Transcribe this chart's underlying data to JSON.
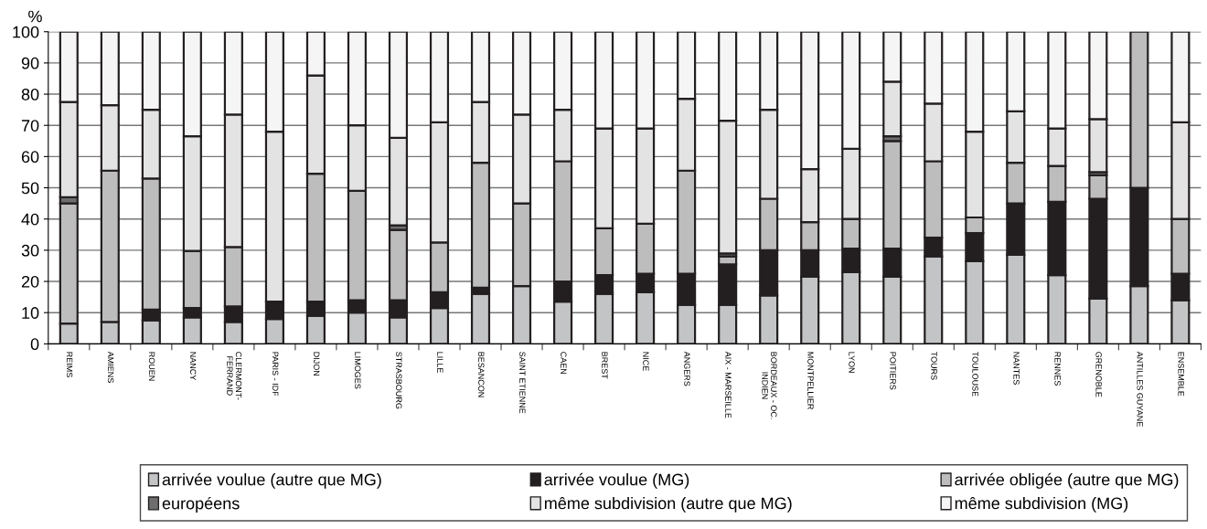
{
  "chart_data": {
    "type": "bar",
    "stacked": true,
    "ylabel": "%",
    "categories": [
      "REIMS",
      "AMIENS",
      "ROUEN",
      "NANCY",
      "CLERMONT-\nFERRAND",
      "PARIS - IDF",
      "DIJON",
      "LIMOGES",
      "STRASBOURG",
      "LILLE",
      "BESANCON",
      "SAINT ETIENNE",
      "CAEN",
      "BREST",
      "NICE",
      "ANGERS",
      "AIX - MARSEILLE",
      "BORDEAUX - OC.\nINDIEN",
      "MONTPELLIER",
      "LYON",
      "POITIERS",
      "TOURS",
      "TOULOUSE",
      "NANTES",
      "RENNES",
      "GRENOBLE",
      "ANTILLES GUYANE",
      "ENSEMBLE"
    ],
    "series": [
      {
        "name": "arrivée voulue (autre que MG)",
        "color": "#c3c4c6",
        "values": [
          6.5,
          7,
          7.5,
          8.5,
          7,
          8,
          9,
          10,
          8.5,
          11.5,
          16,
          18.5,
          13.5,
          16,
          16.5,
          12.5,
          12.5,
          15.5,
          21.5,
          23,
          21.5,
          28,
          26.5,
          28.5,
          22,
          14.5,
          18.5,
          14
        ]
      },
      {
        "name": "arrivée voulue (MG)",
        "color": "#231f20",
        "values": [
          0,
          0,
          3.5,
          3,
          5,
          5.5,
          4.5,
          4,
          5.5,
          5,
          2,
          0,
          6.5,
          6,
          6,
          10,
          13,
          14.5,
          8.5,
          7.5,
          9,
          6,
          9,
          16.5,
          23.5,
          32,
          31.5,
          8.5
        ]
      },
      {
        "name": "arrivée obligée (autre que MG)",
        "color": "#bdbdbd",
        "values": [
          38.5,
          48.5,
          42,
          18.3,
          19,
          0,
          41,
          35,
          22.5,
          16,
          40,
          26.5,
          38.5,
          15,
          16,
          33,
          2.5,
          16.5,
          9,
          9.5,
          34.5,
          24.5,
          5,
          13,
          11.5,
          7.5,
          50,
          17.5
        ]
      },
      {
        "name": "européens",
        "color": "#6e6e6e",
        "values": [
          2,
          0,
          0,
          0,
          0,
          0,
          0,
          0,
          1.5,
          0,
          0,
          0,
          0,
          0,
          0,
          0,
          1,
          0,
          0,
          0,
          1.5,
          0,
          0,
          0,
          0,
          1,
          0,
          0
        ]
      },
      {
        "name": "même subdivision (autre que MG)",
        "color": "#e3e3e3",
        "values": [
          30.5,
          21,
          22,
          36.7,
          42.5,
          54.5,
          31.5,
          21,
          28,
          38.5,
          19.5,
          28.5,
          16.5,
          32,
          30.5,
          23,
          42.5,
          28.5,
          17,
          22.5,
          17.5,
          18.5,
          27.5,
          16.5,
          12,
          17,
          0,
          31
        ]
      },
      {
        "name": "même subdivision (MG)",
        "color": "#f5f5f5",
        "values": [
          22.5,
          23.5,
          25,
          33.5,
          26.5,
          32,
          14,
          30,
          34,
          29,
          22.5,
          26.5,
          25,
          31,
          31,
          21.5,
          28.5,
          25,
          44,
          37.5,
          16,
          23,
          32,
          25.5,
          31,
          28,
          0,
          29
        ]
      }
    ],
    "ylim": [
      0,
      100
    ],
    "yticks": [
      0,
      10,
      20,
      30,
      40,
      50,
      60,
      70,
      80,
      90,
      100
    ],
    "grid": "y",
    "legend": "bottom"
  }
}
